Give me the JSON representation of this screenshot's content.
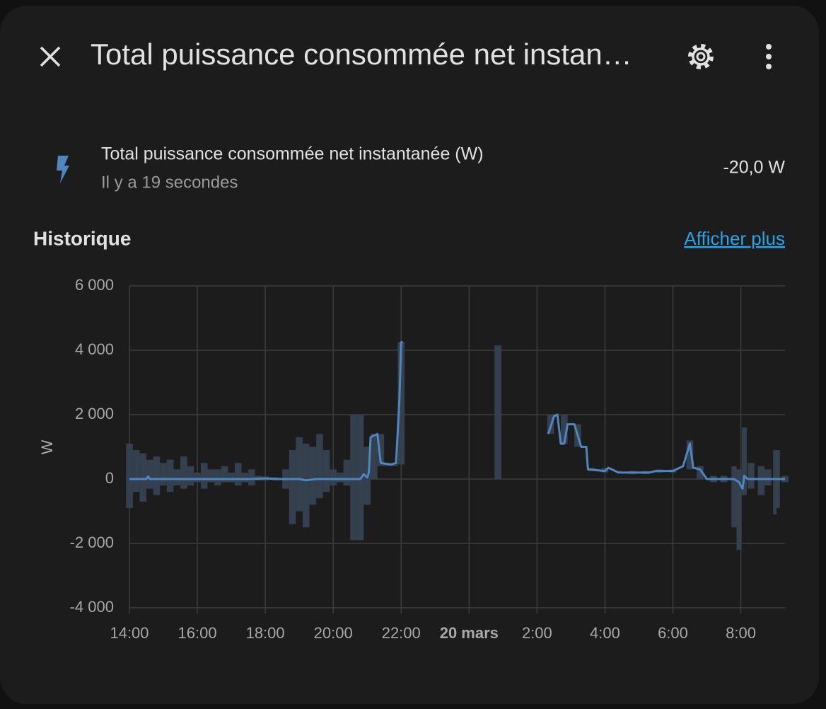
{
  "header": {
    "title": "Total puissance consommée net instan…"
  },
  "entity": {
    "name": "Total puissance consommée net instantanée (W)",
    "last_changed": "Il y a 19 secondes",
    "state": "-20,0 W"
  },
  "history": {
    "title": "Historique",
    "link": "Afficher plus"
  },
  "chart_data": {
    "type": "line",
    "y_label": "W",
    "grid": true,
    "xlim": [
      0,
      19.3
    ],
    "ylim": [
      -4000,
      6000
    ],
    "xticks": [
      {
        "value": 0,
        "label": "14:00"
      },
      {
        "value": 2,
        "label": "16:00"
      },
      {
        "value": 4,
        "label": "18:00"
      },
      {
        "value": 6,
        "label": "20:00"
      },
      {
        "value": 8,
        "label": "22:00"
      },
      {
        "value": 10,
        "label": "20 mars",
        "bold": true
      },
      {
        "value": 12,
        "label": "2:00"
      },
      {
        "value": 14,
        "label": "4:00"
      },
      {
        "value": 16,
        "label": "6:00"
      },
      {
        "value": 18,
        "label": "8:00"
      }
    ],
    "yticks": [
      {
        "value": 6000,
        "label": "6 000"
      },
      {
        "value": 4000,
        "label": "4 000"
      },
      {
        "value": 2000,
        "label": "2 000"
      },
      0,
      {
        "value": -2000,
        "label": "-2 000"
      },
      {
        "value": -4000,
        "label": "-4 000"
      }
    ],
    "x": [
      0,
      0.5,
      0.55,
      0.6,
      1,
      1.5,
      2,
      2.5,
      3,
      3.5,
      4,
      4.5,
      5,
      5.2,
      5.5,
      6,
      6.5,
      6.8,
      6.9,
      7.0,
      7.05,
      7.1,
      7.3,
      7.4,
      7.7,
      7.85,
      7.95,
      8.0,
      8.05,
      9,
      10.85,
      11,
      12.33,
      12.5,
      12.6,
      12.7,
      12.8,
      12.9,
      13.1,
      13.3,
      13.45,
      13.5,
      14.0,
      14.1,
      14.4,
      15,
      15.3,
      15.5,
      16,
      16.3,
      16.5,
      16.6,
      16.8,
      17,
      17.5,
      17.8,
      17.95,
      18.05,
      18.1,
      18.2,
      18.5,
      19,
      19.3
    ],
    "series": [
      {
        "color": "#4f86c0",
        "values": [
          0,
          0,
          80,
          0,
          0,
          0,
          0,
          0,
          0,
          0,
          20,
          0,
          0,
          -40,
          0,
          0,
          0,
          0,
          150,
          50,
          200,
          1300,
          1400,
          500,
          450,
          500,
          2500,
          4250,
          4250,
          null,
          0,
          null,
          1400,
          1950,
          2000,
          1100,
          1100,
          1700,
          1700,
          1000,
          1000,
          300,
          250,
          350,
          200,
          200,
          200,
          250,
          250,
          400,
          1100,
          350,
          300,
          0,
          0,
          0,
          -100,
          -300,
          100,
          0,
          0,
          0,
          0
        ]
      }
    ],
    "band": {
      "color": "#34404d",
      "x": [
        0,
        0.2,
        0.4,
        0.6,
        0.8,
        1.0,
        1.2,
        1.4,
        1.6,
        1.8,
        2.0,
        2.2,
        2.4,
        2.6,
        2.8,
        3.0,
        3.2,
        3.4,
        3.6,
        3.8,
        4.0,
        4.3,
        4.6,
        4.8,
        5.0,
        5.2,
        5.4,
        5.6,
        5.8,
        6.0,
        6.2,
        6.4,
        6.6,
        6.8,
        7.0,
        7.2,
        7.4,
        7.6,
        7.8,
        8.0,
        10.85,
        12.4,
        12.8,
        13.2,
        13.6,
        14.0,
        14.4,
        14.8,
        15.2,
        15.6,
        16.0,
        16.5,
        16.8,
        17.2,
        17.5,
        17.8,
        17.95,
        18.1,
        18.3,
        18.6,
        18.8,
        19.0,
        19.1,
        19.3
      ],
      "min": [
        -900,
        -400,
        -700,
        -300,
        -500,
        -200,
        -400,
        -200,
        -300,
        -200,
        -100,
        -300,
        -100,
        -200,
        -100,
        -100,
        -200,
        -100,
        -200,
        -50,
        -50,
        -50,
        -300,
        -1400,
        -1000,
        -1500,
        -800,
        -600,
        -400,
        -200,
        -100,
        -200,
        -1900,
        -1900,
        -800,
        0,
        400,
        400,
        400,
        450,
        0,
        1400,
        1100,
        1000,
        250,
        200,
        200,
        150,
        150,
        200,
        200,
        300,
        0,
        -100,
        -100,
        -1500,
        -2200,
        -500,
        -300,
        -500,
        -200,
        -1100,
        -900,
        -100
      ],
      "max": [
        1100,
        900,
        800,
        600,
        700,
        500,
        600,
        300,
        700,
        400,
        200,
        500,
        300,
        300,
        400,
        200,
        500,
        200,
        300,
        100,
        80,
        50,
        300,
        900,
        1300,
        1100,
        1000,
        1400,
        900,
        300,
        200,
        600,
        2000,
        2000,
        1000,
        1400,
        1400,
        500,
        500,
        4250,
        4150,
        2000,
        2000,
        1700,
        350,
        350,
        250,
        250,
        250,
        300,
        300,
        1200,
        400,
        100,
        100,
        400,
        300,
        1600,
        500,
        400,
        300,
        900,
        900,
        100
      ]
    }
  }
}
